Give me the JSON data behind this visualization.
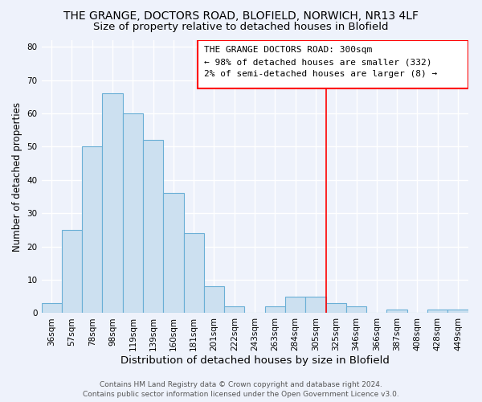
{
  "title": "THE GRANGE, DOCTORS ROAD, BLOFIELD, NORWICH, NR13 4LF",
  "subtitle": "Size of property relative to detached houses in Blofield",
  "xlabel": "Distribution of detached houses by size in Blofield",
  "ylabel": "Number of detached properties",
  "categories": [
    "36sqm",
    "57sqm",
    "78sqm",
    "98sqm",
    "119sqm",
    "139sqm",
    "160sqm",
    "181sqm",
    "201sqm",
    "222sqm",
    "243sqm",
    "263sqm",
    "284sqm",
    "305sqm",
    "325sqm",
    "346sqm",
    "366sqm",
    "387sqm",
    "408sqm",
    "428sqm",
    "449sqm"
  ],
  "values": [
    3,
    25,
    50,
    66,
    60,
    52,
    36,
    24,
    8,
    2,
    0,
    2,
    5,
    5,
    3,
    2,
    0,
    1,
    0,
    1,
    1
  ],
  "bar_color": "#cce0f0",
  "bar_edge_color": "#6aafd6",
  "marker_idx": 13,
  "marker_color": "red",
  "ylim": [
    0,
    82
  ],
  "yticks": [
    0,
    10,
    20,
    30,
    40,
    50,
    60,
    70,
    80
  ],
  "annotation_title": "THE GRANGE DOCTORS ROAD: 300sqm",
  "annotation_line1": "← 98% of detached houses are smaller (332)",
  "annotation_line2": "2% of semi-detached houses are larger (8) →",
  "footer_line1": "Contains HM Land Registry data © Crown copyright and database right 2024.",
  "footer_line2": "Contains public sector information licensed under the Open Government Licence v3.0.",
  "background_color": "#eef2fb",
  "plot_bg_color": "#eef2fb",
  "grid_color": "#ffffff",
  "title_fontsize": 10,
  "subtitle_fontsize": 9.5,
  "xlabel_fontsize": 9.5,
  "ylabel_fontsize": 8.5,
  "tick_fontsize": 7.5,
  "annotation_fontsize": 8,
  "footer_fontsize": 6.5
}
